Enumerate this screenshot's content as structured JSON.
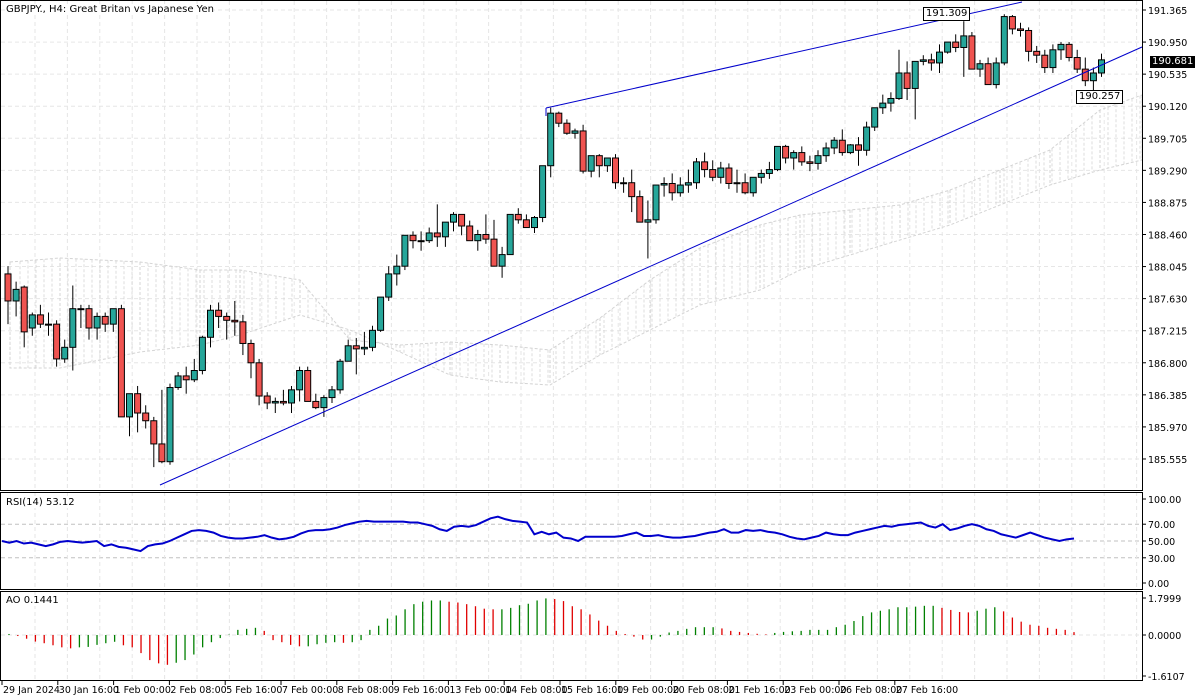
{
  "header": {
    "symbol": "GBPJPY.",
    "timeframe": "H4",
    "title": "GBPJPY., H4:  Great Britan vs Japanese Yen"
  },
  "colors": {
    "bull": "#26a69a",
    "bear": "#ef5350",
    "outline": "#000000",
    "trendline": "#0000cc",
    "rsi_line": "#0000cc",
    "ao_up": "#008000",
    "ao_down": "#e00000",
    "grid": "#e6e6e6",
    "cloud": "#d4d4d4"
  },
  "price_axis": {
    "ticks": [
      "191.365",
      "190.950",
      "190.535",
      "190.120",
      "189.705",
      "189.290",
      "188.875",
      "188.460",
      "188.045",
      "187.630",
      "187.215",
      "186.800",
      "186.385",
      "185.970",
      "185.555"
    ],
    "current_price": "190.681"
  },
  "annotations": {
    "high_label": "191.309",
    "low_label": "190.257"
  },
  "time_axis": {
    "ticks": [
      "29 Jan 2024",
      "30 Jan 16:00",
      "1 Feb 00:00",
      "2 Feb 08:00",
      "5 Feb 16:00",
      "7 Feb 00:00",
      "8 Feb 08:00",
      "9 Feb 16:00",
      "13 Feb 00:00",
      "14 Feb 08:00",
      "15 Feb 16:00",
      "19 Feb 00:00",
      "20 Feb 08:00",
      "21 Feb 16:00",
      "23 Feb 00:00",
      "26 Feb 08:00",
      "27 Feb 16:00"
    ]
  },
  "rsi": {
    "label": "RSI(14) 53.12",
    "ticks": [
      "100.00",
      "70.00",
      "50.00",
      "30.00",
      "0.00"
    ]
  },
  "ao": {
    "label": "AO 0.1441",
    "ticks": [
      "1.7999",
      "0.0000",
      "-1.6107"
    ]
  },
  "chart_data": {
    "type": "candlestick",
    "title": "GBPJPY., H4: Great Britan vs Japanese Yen",
    "ylim": [
      185.3,
      191.5
    ],
    "indicators": [
      "Ichimoku cloud",
      "RSI(14)",
      "Awesome Oscillator"
    ],
    "trendlines": [
      {
        "name": "lower-channel",
        "from": {
          "x_index": 19,
          "price": 185.48
        },
        "to": {
          "x_index": 146,
          "price": 190.95
        }
      },
      {
        "name": "upper-channel",
        "from": {
          "x_index": 67,
          "price": 190.12
        },
        "to": {
          "x_index": 126,
          "price": 191.55
        }
      }
    ],
    "candles": [
      [
        187.95,
        188.05,
        187.3,
        187.6
      ],
      [
        187.6,
        187.85,
        187.4,
        187.75
      ],
      [
        187.78,
        187.8,
        187.0,
        187.2
      ],
      [
        187.25,
        187.45,
        187.15,
        187.42
      ],
      [
        187.42,
        187.55,
        187.25,
        187.3
      ],
      [
        187.3,
        187.45,
        187.15,
        187.3
      ],
      [
        187.3,
        187.35,
        186.75,
        186.85
      ],
      [
        186.85,
        187.1,
        186.8,
        187.0
      ],
      [
        187.0,
        187.8,
        186.7,
        187.5
      ],
      [
        187.5,
        187.55,
        187.25,
        187.5
      ],
      [
        187.5,
        187.55,
        187.1,
        187.25
      ],
      [
        187.25,
        187.45,
        187.1,
        187.4
      ],
      [
        187.4,
        187.45,
        187.2,
        187.3
      ],
      [
        187.3,
        187.5,
        187.2,
        187.5
      ],
      [
        187.5,
        187.55,
        186.1,
        186.1
      ],
      [
        186.1,
        186.4,
        185.85,
        186.4
      ],
      [
        186.4,
        186.5,
        185.9,
        186.15
      ],
      [
        186.15,
        186.25,
        185.95,
        186.05
      ],
      [
        186.05,
        186.1,
        185.45,
        185.75
      ],
      [
        185.75,
        186.45,
        185.5,
        185.52
      ],
      [
        185.52,
        186.53,
        185.48,
        186.48
      ],
      [
        186.48,
        186.68,
        186.45,
        186.63
      ],
      [
        186.63,
        186.75,
        186.4,
        186.58
      ],
      [
        186.58,
        186.85,
        186.55,
        186.7
      ],
      [
        186.7,
        187.15,
        186.65,
        187.13
      ],
      [
        187.13,
        187.55,
        187.0,
        187.48
      ],
      [
        187.48,
        187.58,
        187.25,
        187.4
      ],
      [
        187.4,
        187.45,
        187.1,
        187.35
      ],
      [
        187.35,
        187.6,
        187.15,
        187.33
      ],
      [
        187.33,
        187.42,
        186.9,
        187.05
      ],
      [
        187.05,
        187.1,
        186.6,
        186.8
      ],
      [
        186.8,
        186.85,
        186.25,
        186.37
      ],
      [
        186.37,
        186.42,
        186.2,
        186.28
      ],
      [
        186.28,
        186.35,
        186.15,
        186.3
      ],
      [
        186.3,
        186.45,
        186.25,
        186.28
      ],
      [
        186.28,
        186.5,
        186.15,
        186.45
      ],
      [
        186.45,
        186.75,
        186.3,
        186.7
      ],
      [
        186.7,
        186.75,
        186.35,
        186.3
      ],
      [
        186.3,
        186.4,
        186.2,
        186.22
      ],
      [
        186.22,
        186.38,
        186.1,
        186.35
      ],
      [
        186.35,
        186.5,
        186.28,
        186.45
      ],
      [
        186.45,
        186.85,
        186.4,
        186.82
      ],
      [
        186.82,
        187.1,
        186.85,
        187.02
      ],
      [
        187.02,
        187.12,
        186.65,
        186.98
      ],
      [
        186.98,
        187.2,
        186.9,
        187.0
      ],
      [
        187.0,
        187.28,
        186.95,
        187.22
      ],
      [
        187.22,
        187.65,
        187.2,
        187.65
      ],
      [
        187.65,
        188.05,
        187.6,
        187.95
      ],
      [
        187.95,
        188.2,
        187.8,
        188.05
      ],
      [
        188.05,
        188.45,
        188.0,
        188.45
      ],
      [
        188.45,
        188.5,
        188.28,
        188.38
      ],
      [
        188.38,
        188.5,
        188.25,
        188.38
      ],
      [
        188.38,
        188.55,
        188.35,
        188.48
      ],
      [
        188.48,
        188.85,
        188.3,
        188.43
      ],
      [
        188.43,
        188.62,
        188.3,
        188.62
      ],
      [
        188.62,
        188.75,
        188.5,
        188.72
      ],
      [
        188.72,
        188.7,
        188.45,
        188.57
      ],
      [
        188.57,
        188.64,
        188.38,
        188.38
      ],
      [
        188.38,
        188.52,
        188.25,
        188.46
      ],
      [
        188.46,
        188.72,
        188.34,
        188.4
      ],
      [
        188.4,
        188.65,
        188.15,
        188.05
      ],
      [
        188.05,
        188.3,
        187.9,
        188.2
      ],
      [
        188.2,
        188.72,
        188.2,
        188.72
      ],
      [
        188.72,
        188.8,
        188.6,
        188.65
      ],
      [
        188.65,
        188.72,
        188.55,
        188.55
      ],
      [
        188.55,
        188.7,
        188.48,
        188.68
      ],
      [
        188.68,
        188.85,
        188.62,
        189.35
      ],
      [
        189.35,
        190.1,
        189.2,
        190.03
      ],
      [
        190.03,
        190.05,
        189.85,
        189.9
      ],
      [
        189.9,
        189.95,
        189.75,
        189.77
      ],
      [
        189.77,
        189.83,
        189.7,
        189.8
      ],
      [
        189.8,
        189.88,
        189.25,
        189.28
      ],
      [
        189.28,
        189.48,
        189.2,
        189.48
      ],
      [
        189.48,
        189.5,
        189.2,
        189.35
      ],
      [
        189.35,
        189.45,
        189.27,
        189.45
      ],
      [
        189.45,
        189.5,
        189.05,
        189.13
      ],
      [
        189.13,
        189.2,
        189.0,
        189.13
      ],
      [
        189.13,
        189.3,
        188.75,
        188.95
      ],
      [
        188.95,
        189.03,
        188.65,
        188.62
      ],
      [
        188.62,
        188.9,
        188.15,
        188.65
      ],
      [
        188.65,
        189.05,
        188.6,
        189.1
      ],
      [
        189.1,
        189.2,
        188.95,
        189.12
      ],
      [
        189.12,
        189.25,
        188.9,
        189.0
      ],
      [
        189.0,
        189.2,
        188.95,
        189.1
      ],
      [
        189.1,
        189.3,
        189.0,
        189.13
      ],
      [
        189.13,
        189.45,
        189.05,
        189.4
      ],
      [
        189.4,
        189.52,
        189.2,
        189.3
      ],
      [
        189.3,
        189.42,
        189.15,
        189.2
      ],
      [
        189.2,
        189.4,
        189.12,
        189.32
      ],
      [
        189.32,
        189.38,
        189.05,
        189.12
      ],
      [
        189.12,
        189.3,
        189.0,
        189.13
      ],
      [
        189.13,
        189.25,
        188.98,
        189.0
      ],
      [
        189.0,
        189.2,
        188.95,
        189.2
      ],
      [
        189.2,
        189.3,
        189.12,
        189.25
      ],
      [
        189.25,
        189.4,
        189.18,
        189.3
      ],
      [
        189.3,
        189.6,
        189.28,
        189.6
      ],
      [
        189.6,
        189.62,
        189.38,
        189.45
      ],
      [
        189.45,
        189.55,
        189.3,
        189.52
      ],
      [
        189.52,
        189.6,
        189.35,
        189.4
      ],
      [
        189.4,
        189.48,
        189.28,
        189.38
      ],
      [
        189.38,
        189.55,
        189.3,
        189.48
      ],
      [
        189.48,
        189.65,
        189.4,
        189.58
      ],
      [
        189.58,
        189.72,
        189.5,
        189.68
      ],
      [
        189.68,
        189.82,
        189.48,
        189.52
      ],
      [
        189.52,
        189.63,
        189.5,
        189.62
      ],
      [
        189.62,
        189.72,
        189.35,
        189.55
      ],
      [
        189.55,
        189.92,
        189.48,
        189.85
      ],
      [
        189.85,
        190.1,
        189.8,
        190.1
      ],
      [
        190.1,
        190.27,
        190.02,
        190.16
      ],
      [
        190.16,
        190.3,
        190.05,
        190.22
      ],
      [
        190.22,
        190.85,
        190.2,
        190.55
      ],
      [
        190.55,
        190.7,
        190.2,
        190.35
      ],
      [
        190.35,
        190.65,
        189.95,
        190.7
      ],
      [
        190.7,
        190.78,
        190.65,
        190.72
      ],
      [
        190.72,
        190.8,
        190.58,
        190.68
      ],
      [
        190.68,
        190.92,
        190.55,
        190.82
      ],
      [
        190.82,
        190.95,
        190.8,
        190.95
      ],
      [
        190.95,
        191.05,
        190.82,
        190.88
      ],
      [
        190.88,
        191.22,
        190.5,
        191.03
      ],
      [
        191.03,
        191.08,
        190.62,
        190.6
      ],
      [
        190.6,
        190.72,
        190.5,
        190.67
      ],
      [
        190.67,
        190.75,
        190.44,
        190.4
      ],
      [
        190.4,
        190.75,
        190.35,
        190.68
      ],
      [
        190.68,
        191.31,
        190.65,
        191.28
      ],
      [
        191.28,
        191.3,
        191.05,
        191.12
      ],
      [
        191.12,
        191.2,
        191.02,
        191.1
      ],
      [
        191.1,
        191.14,
        190.7,
        190.83
      ],
      [
        190.83,
        190.9,
        190.68,
        190.78
      ],
      [
        190.78,
        190.85,
        190.55,
        190.62
      ],
      [
        190.62,
        190.92,
        190.55,
        190.85
      ],
      [
        190.85,
        190.95,
        190.72,
        190.92
      ],
      [
        190.92,
        190.95,
        190.7,
        190.75
      ],
      [
        190.75,
        190.85,
        190.55,
        190.6
      ],
      [
        190.6,
        190.75,
        190.38,
        190.45
      ],
      [
        190.45,
        190.62,
        190.3,
        190.55
      ],
      [
        190.55,
        190.8,
        190.5,
        190.72
      ]
    ],
    "rsi_values": [
      50,
      48,
      50,
      47,
      48,
      46,
      44,
      46,
      49,
      50,
      49,
      48,
      49,
      50,
      44,
      46,
      43,
      42,
      40,
      38,
      44,
      46,
      47,
      50,
      54,
      58,
      62,
      63,
      62,
      60,
      56,
      54,
      53,
      53,
      54,
      55,
      57,
      54,
      52,
      53,
      55,
      59,
      62,
      63,
      63,
      64,
      66,
      69,
      71,
      73,
      74,
      73,
      73,
      73,
      73,
      73,
      72,
      72,
      70,
      68,
      64,
      62,
      67,
      68,
      67,
      69,
      73,
      77,
      79,
      76,
      74,
      73,
      72,
      58,
      61,
      58,
      60,
      54,
      53,
      50,
      55,
      55,
      55,
      55,
      55,
      56,
      58,
      60,
      56,
      56,
      57,
      55,
      54,
      54,
      55,
      56,
      58,
      60,
      61,
      64,
      60,
      60,
      63,
      62,
      63,
      61,
      60,
      58,
      55,
      53,
      52,
      54,
      56,
      60,
      58,
      57,
      57,
      60,
      62,
      64,
      66,
      68,
      67,
      69,
      70,
      71,
      72,
      68,
      66,
      70,
      63,
      65,
      68,
      70,
      68,
      64,
      62,
      58,
      56,
      54,
      57,
      60,
      57,
      54,
      52,
      50,
      52,
      53
    ],
    "ao_values": [
      0.05,
      -0.05,
      -0.18,
      -0.32,
      -0.4,
      -0.5,
      -0.6,
      -0.65,
      -0.6,
      -0.58,
      -0.48,
      -0.4,
      -0.33,
      -0.5,
      -0.6,
      -0.88,
      -1.22,
      -1.38,
      -1.45,
      -1.35,
      -1.22,
      -0.95,
      -0.6,
      -0.35,
      -0.15,
      0.02,
      0.25,
      0.3,
      0.35,
      0.2,
      -0.25,
      -0.35,
      -0.48,
      -0.55,
      -0.55,
      -0.45,
      -0.38,
      -0.35,
      -0.38,
      -0.35,
      -0.25,
      0.25,
      0.45,
      0.8,
      0.95,
      1.25,
      1.5,
      1.62,
      1.68,
      1.68,
      1.62,
      1.58,
      1.5,
      1.4,
      1.28,
      1.25,
      1.25,
      1.32,
      1.45,
      1.52,
      1.68,
      1.78,
      1.75,
      1.65,
      1.4,
      1.25,
      1.0,
      0.7,
      0.45,
      0.2,
      0.05,
      -0.08,
      -0.22,
      -0.22,
      -0.08,
      0.12,
      0.2,
      0.3,
      0.38,
      0.38,
      0.38,
      0.32,
      0.2,
      0.15,
      0.1,
      0.06,
      0.03,
      0.1,
      0.15,
      0.18,
      0.2,
      0.25,
      0.25,
      0.25,
      0.38,
      0.5,
      0.68,
      0.92,
      1.1,
      1.18,
      1.25,
      1.35,
      1.35,
      1.38,
      1.42,
      1.42,
      1.32,
      1.22,
      1.12,
      1.1,
      1.18,
      1.28,
      1.35,
      1.15,
      0.85,
      0.65,
      0.5,
      0.45,
      0.35,
      0.3,
      0.25,
      0.14
    ]
  }
}
